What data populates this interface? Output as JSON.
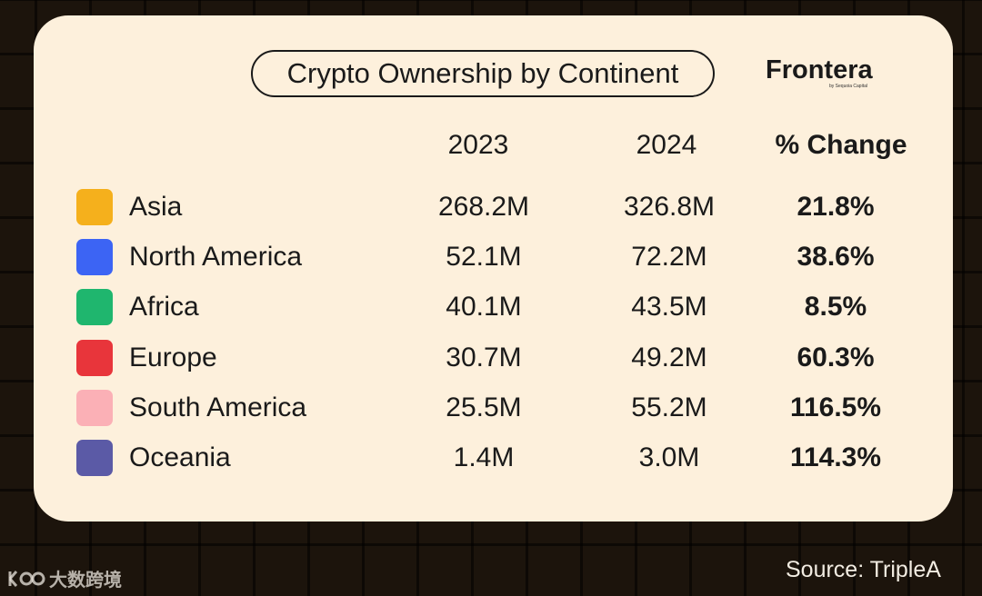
{
  "chart_data": {
    "type": "table",
    "title": "Crypto Ownership by Continent",
    "columns": [
      "2023",
      "2024",
      "% Change"
    ],
    "rows": [
      {
        "continent": "Asia",
        "color": "#f5b01c",
        "y2023": "268.2M",
        "y2024": "326.8M",
        "change": "21.8%"
      },
      {
        "continent": "North America",
        "color": "#3c64f4",
        "y2023": "52.1M",
        "y2024": "72.2M",
        "change": "38.6%"
      },
      {
        "continent": "Africa",
        "color": "#1fb66e",
        "y2023": "40.1M",
        "y2024": "43.5M",
        "change": "8.5%"
      },
      {
        "continent": "Europe",
        "color": "#e8353b",
        "y2023": "30.7M",
        "y2024": "49.2M",
        "change": "60.3%"
      },
      {
        "continent": "South America",
        "color": "#fbb0b6",
        "y2023": "25.5M",
        "y2024": "55.2M",
        "change": "116.5%"
      },
      {
        "continent": "Oceania",
        "color": "#5b5aa6",
        "y2023": "1.4M",
        "y2024": "3.0M",
        "change": "114.3%"
      }
    ]
  },
  "brand": {
    "name": "Frontera",
    "tagline": "by Sequoia Capital"
  },
  "source": "Source: TripleA",
  "watermark": {
    "text": "大数跨境",
    "icon": "logo-icon"
  },
  "colors": {
    "card": "#fdf0dc",
    "background": "#1c140c",
    "text": "#1a1a1a"
  }
}
